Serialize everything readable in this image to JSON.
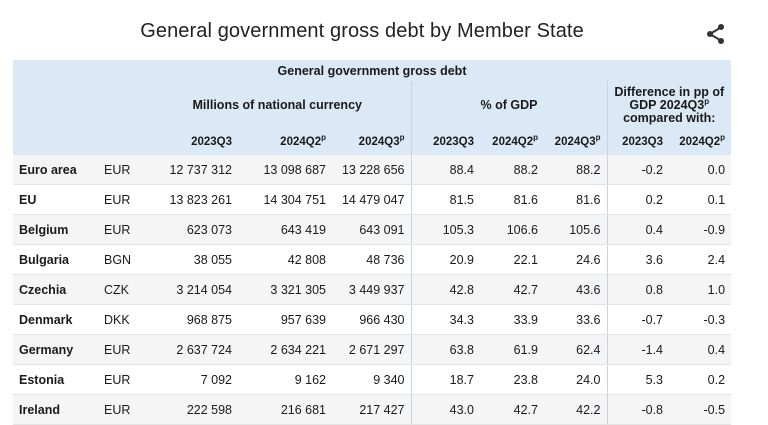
{
  "title": "General government gross debt by Member State",
  "icons": {
    "share": "share-icon"
  },
  "table": {
    "caption": "General government gross debt",
    "groups": {
      "millions": "Millions of national currency",
      "pct_gdp": "% of GDP",
      "diff": "Difference in pp of GDP 2024Q3",
      "diff_sup": "p",
      "diff_tail": "compared with:"
    },
    "columns": [
      {
        "label": "2023Q3",
        "sup": ""
      },
      {
        "label": "2024Q2",
        "sup": "p"
      },
      {
        "label": "2024Q3",
        "sup": "p"
      },
      {
        "label": "2023Q3",
        "sup": ""
      },
      {
        "label": "2024Q2",
        "sup": "p"
      },
      {
        "label": "2024Q3",
        "sup": "p"
      },
      {
        "label": "2023Q3",
        "sup": ""
      },
      {
        "label": "2024Q2",
        "sup": "p"
      }
    ],
    "rows": [
      {
        "name": "Euro area",
        "currency": "EUR",
        "values": [
          "12 737 312",
          "13 098 687",
          "13 228 656",
          "88.4",
          "88.2",
          "88.2",
          "-0.2",
          "0.0"
        ]
      },
      {
        "name": "EU",
        "currency": "EUR",
        "values": [
          "13 823 261",
          "14 304 751",
          "14 479 047",
          "81.5",
          "81.6",
          "81.6",
          "0.2",
          "0.1"
        ]
      },
      {
        "name": "Belgium",
        "currency": "EUR",
        "values": [
          "623 073",
          "643 419",
          "643 091",
          "105.3",
          "106.6",
          "105.6",
          "0.4",
          "-0.9"
        ]
      },
      {
        "name": "Bulgaria",
        "currency": "BGN",
        "values": [
          "38 055",
          "42 808",
          "48 736",
          "20.9",
          "22.1",
          "24.6",
          "3.6",
          "2.4"
        ]
      },
      {
        "name": "Czechia",
        "currency": "CZK",
        "values": [
          "3 214 054",
          "3 321 305",
          "3 449 937",
          "42.8",
          "42.7",
          "43.6",
          "0.8",
          "1.0"
        ]
      },
      {
        "name": "Denmark",
        "currency": "DKK",
        "values": [
          "968 875",
          "957 639",
          "966 430",
          "34.3",
          "33.9",
          "33.6",
          "-0.7",
          "-0.3"
        ]
      },
      {
        "name": "Germany",
        "currency": "EUR",
        "values": [
          "2 637 724",
          "2 634 221",
          "2 671 297",
          "63.8",
          "61.9",
          "62.4",
          "-1.4",
          "0.4"
        ]
      },
      {
        "name": "Estonia",
        "currency": "EUR",
        "values": [
          "7 092",
          "9 162",
          "9 340",
          "18.7",
          "23.8",
          "24.0",
          "5.3",
          "0.2"
        ]
      },
      {
        "name": "Ireland",
        "currency": "EUR",
        "values": [
          "222 598",
          "216 681",
          "217 427",
          "43.0",
          "42.7",
          "42.2",
          "-0.8",
          "-0.5"
        ]
      }
    ]
  },
  "colors": {
    "header_bg": "#dbe9f6",
    "row_alt": "#f5f5f5"
  }
}
